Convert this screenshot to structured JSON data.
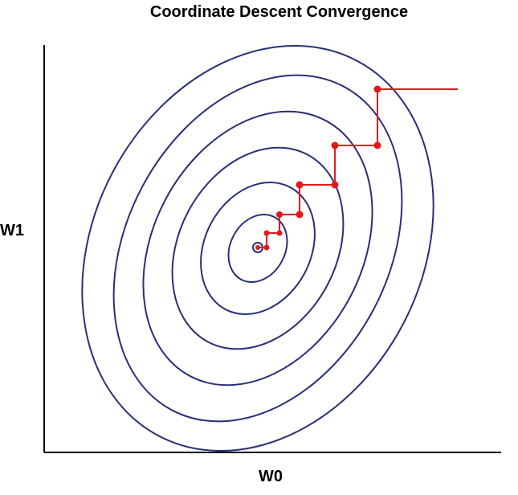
{
  "title": "Coordinate Descent Convergence",
  "axes": {
    "x_label": "W0",
    "y_label": "W1"
  },
  "colors": {
    "contour": "#2a2f78",
    "path": "#e01a1a",
    "axis": "#000000"
  },
  "contours": {
    "count": 6,
    "rotation_deg": -62
  },
  "path": {
    "description_points": 12
  }
}
